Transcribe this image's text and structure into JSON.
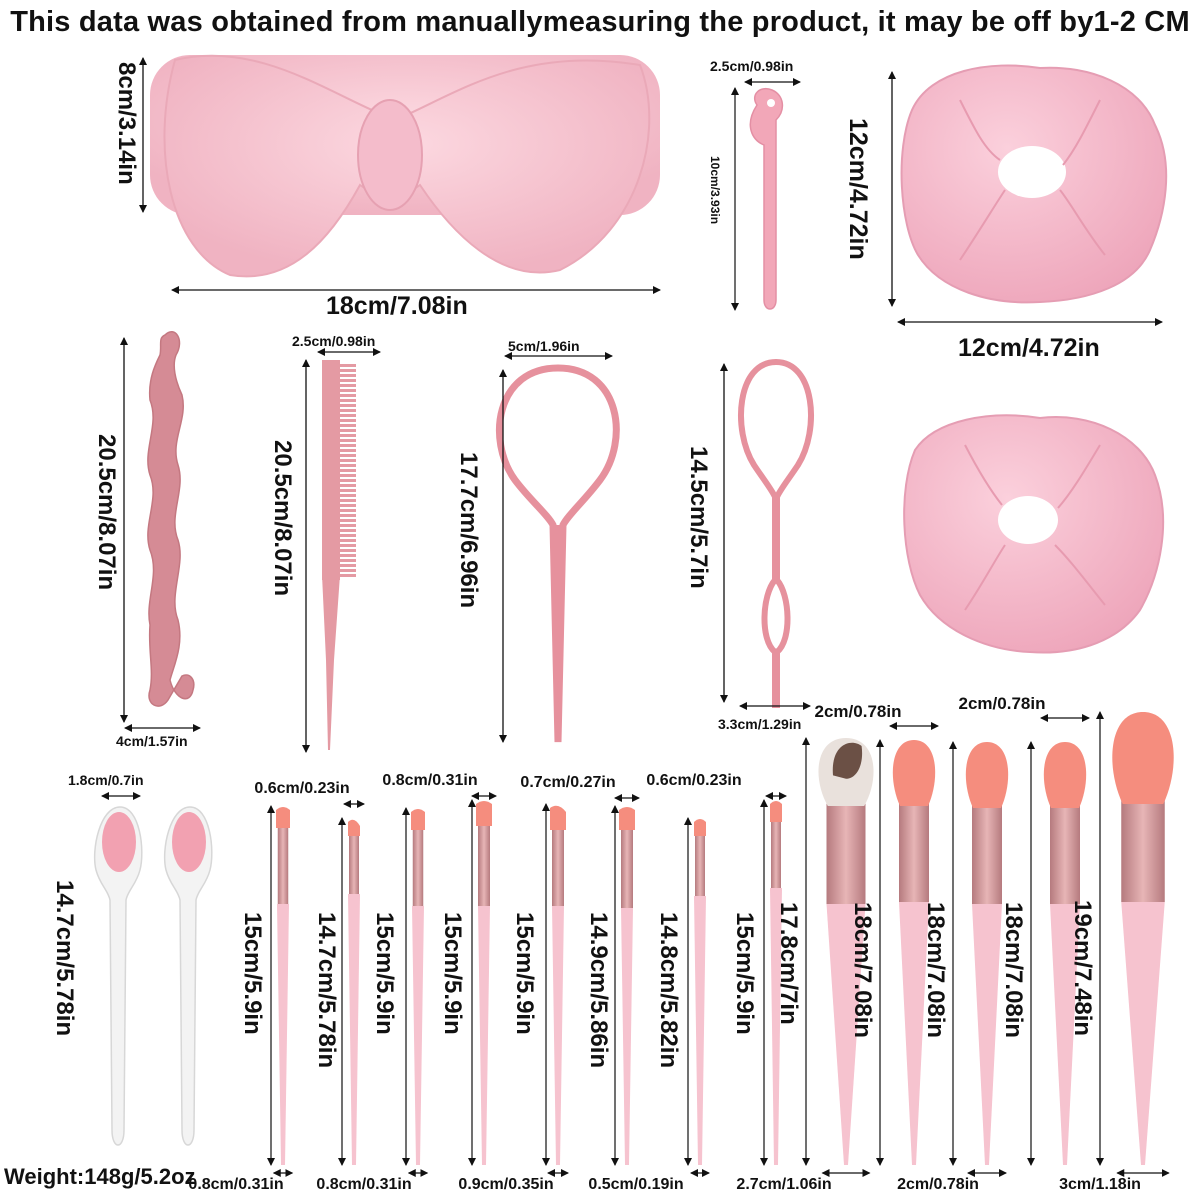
{
  "header": {
    "note": "This data was obtained from manuallymeasuring the product, it may be off by1-2 CM"
  },
  "footer": {
    "weight": "Weight:148g/5.2oz"
  },
  "colors": {
    "pink": "#f6c3cf",
    "pink_dark": "#d98a94",
    "peach": "#f58d7e",
    "rose_gold": "#c98d8f",
    "white": "#f5f5f5"
  },
  "items": {
    "headband": {
      "height": "8cm/3.14in",
      "width": "18cm/7.08in"
    },
    "loop_pin": {
      "width": "2.5cm/0.98in",
      "height": "10cm/3.93in"
    },
    "scrunchie": {
      "height": "12cm/4.72in",
      "width": "12cm/4.72in"
    },
    "bun_hook": {
      "height": "20.5cm/8.07in",
      "width": "4cm/1.57in"
    },
    "tail_comb": {
      "width": "2.5cm/0.98in",
      "height": "20.5cm/8.07in"
    },
    "topsy_tail_large": {
      "width": "5cm/1.96in",
      "height": "17.7cm/6.96in"
    },
    "topsy_tail_small": {
      "height": "14.5cm/5.7in",
      "width": "3.3cm/1.29in"
    },
    "lip_brush": {
      "width": "1.8cm/0.7in",
      "height": "14.7cm/5.78in"
    },
    "brushes": [
      {
        "height": "15cm/5.9in",
        "top": "",
        "bottom": "0.8cm/0.31in"
      },
      {
        "height": "14.7cm/5.78in",
        "top": "0.6cm/0.23in",
        "bottom": ""
      },
      {
        "height": "15cm/5.9in",
        "top": "",
        "bottom": "0.8cm/0.31in"
      },
      {
        "height": "15cm/5.9in",
        "top": "0.8cm/0.31in",
        "bottom": ""
      },
      {
        "height": "15cm/5.9in",
        "top": "",
        "bottom": "0.9cm/0.35in"
      },
      {
        "height": "14.9cm/5.86in",
        "top": "0.7cm/0.27in",
        "bottom": ""
      },
      {
        "height": "14.8cm/5.82in",
        "top": "",
        "bottom": "0.5cm/0.19in"
      },
      {
        "height": "15cm/5.9in",
        "top": "0.6cm/0.23in",
        "bottom": ""
      },
      {
        "height": "17.8cm/7in",
        "top": "",
        "bottom": "2.7cm/1.06in"
      },
      {
        "height": "18cm/7.08in",
        "top": "2cm/0.78in",
        "bottom": ""
      },
      {
        "height": "18cm/7.08in",
        "top": "",
        "bottom": "2cm/0.78in"
      },
      {
        "height": "18cm/7.08in",
        "top": "2cm/0.78in",
        "bottom": ""
      },
      {
        "height": "19cm/7.48in",
        "top": "",
        "bottom": "3cm/1.18in"
      }
    ]
  }
}
